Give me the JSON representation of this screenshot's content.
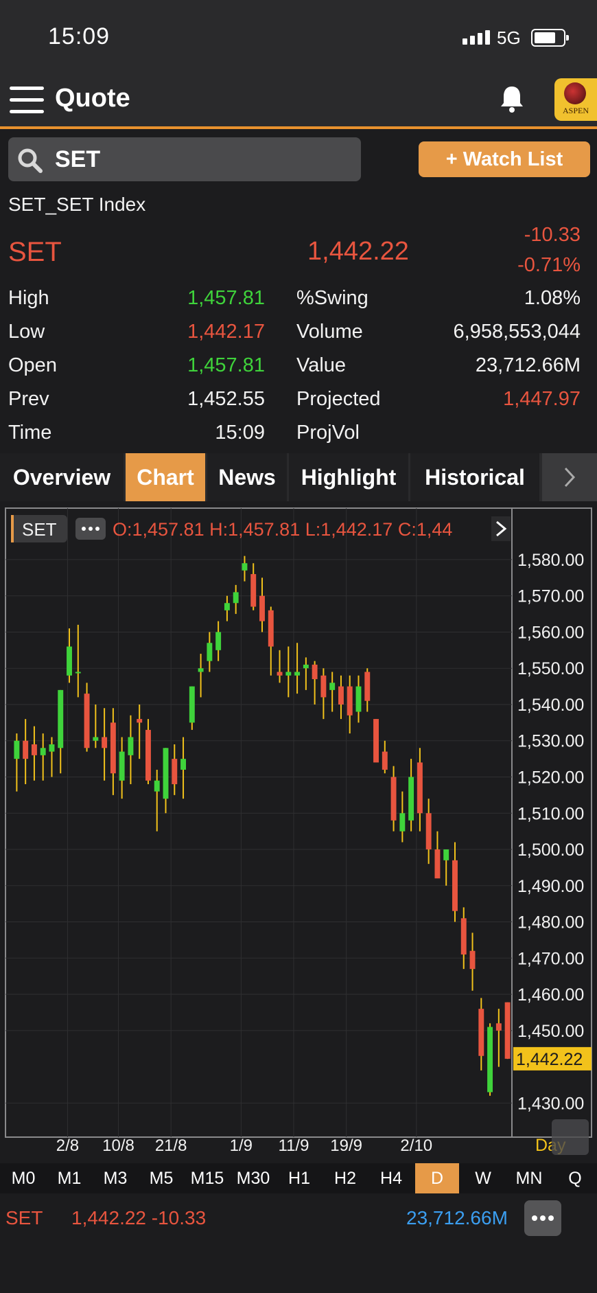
{
  "status_bar": {
    "time": "15:09",
    "network": "5G"
  },
  "header": {
    "title": "Quote",
    "logo_text": "ASPEN"
  },
  "search": {
    "value": "SET"
  },
  "watch_button": "+ Watch List",
  "security": {
    "full_name": "SET_SET Index",
    "symbol": "SET",
    "last": "1,442.22",
    "change": "-10.33",
    "change_pct": "-0.71%"
  },
  "stats_left": [
    {
      "label": "High",
      "value": "1,457.81",
      "color": "green"
    },
    {
      "label": "Low",
      "value": "1,442.17",
      "color": "red"
    },
    {
      "label": "Open",
      "value": "1,457.81",
      "color": "green"
    },
    {
      "label": "Prev",
      "value": "1,452.55",
      "color": "white"
    },
    {
      "label": "Time",
      "value": "15:09",
      "color": "white"
    }
  ],
  "stats_right": [
    {
      "label": "%Swing",
      "value": "1.08%",
      "color": "white"
    },
    {
      "label": "Volume",
      "value": "6,958,553,044",
      "color": "white"
    },
    {
      "label": "Value",
      "value": "23,712.66M",
      "color": "white"
    },
    {
      "label": "Projected",
      "value": "1,447.97",
      "color": "red"
    },
    {
      "label": "ProjVol",
      "value": "",
      "color": "white"
    }
  ],
  "tabs": [
    "Overview",
    "Chart",
    "News",
    "Highlight",
    "Historical"
  ],
  "active_tab": "Chart",
  "chart_legend": {
    "symbol": "SET",
    "ohlc": "O:1,457.81  H:1,457.81  L:1,442.17  C:1,44"
  },
  "chart_period_label": "Day",
  "timeframes": [
    "M0",
    "M1",
    "M3",
    "M5",
    "M15",
    "M30",
    "H1",
    "H2",
    "H4",
    "D",
    "W",
    "MN",
    "Q"
  ],
  "active_timeframe": "D",
  "footer": {
    "symbol": "SET",
    "price_change": "1,442.22 -10.33",
    "value": "23,712.66M"
  },
  "colors": {
    "up": "#3fd33b",
    "down": "#e8553f",
    "accent": "#e69a48",
    "wick": "#f2c21b",
    "value_blue": "#3b9ef0"
  },
  "chart_data": {
    "type": "candlestick",
    "title": "",
    "y_ticks": [
      "1,580.00",
      "1,570.00",
      "1,560.00",
      "1,550.00",
      "1,540.00",
      "1,530.00",
      "1,520.00",
      "1,510.00",
      "1,500.00",
      "1,490.00",
      "1,480.00",
      "1,470.00",
      "1,460.00",
      "1,450.00",
      "1,430.00"
    ],
    "y_tick_values": [
      1580,
      1570,
      1560,
      1550,
      1540,
      1530,
      1520,
      1510,
      1500,
      1490,
      1480,
      1470,
      1460,
      1450,
      1430
    ],
    "ylim": [
      1424,
      1587
    ],
    "x_ticks": [
      {
        "label": "2/8",
        "index": 5.8
      },
      {
        "label": "10/8",
        "index": 11.6
      },
      {
        "label": "21/8",
        "index": 17.6
      },
      {
        "label": "1/9",
        "index": 25.6
      },
      {
        "label": "11/9",
        "index": 31.6
      },
      {
        "label": "19/9",
        "index": 37.6
      },
      {
        "label": "2/10",
        "index": 45.6
      }
    ],
    "current_price_label": "1,442.22",
    "current_price": 1442.22,
    "candles": [
      {
        "o": 1525,
        "h": 1532,
        "l": 1516,
        "c": 1530
      },
      {
        "o": 1530,
        "h": 1536,
        "l": 1518,
        "c": 1525
      },
      {
        "o": 1529,
        "h": 1534,
        "l": 1519,
        "c": 1526
      },
      {
        "o": 1526,
        "h": 1532,
        "l": 1519,
        "c": 1528
      },
      {
        "o": 1527,
        "h": 1531,
        "l": 1520,
        "c": 1529
      },
      {
        "o": 1528,
        "h": 1544,
        "l": 1521,
        "c": 1544
      },
      {
        "o": 1548,
        "h": 1561,
        "l": 1546,
        "c": 1556
      },
      {
        "o": 1549,
        "h": 1562,
        "l": 1542,
        "c": 1549
      },
      {
        "o": 1543,
        "h": 1546,
        "l": 1527,
        "c": 1528
      },
      {
        "o": 1530,
        "h": 1540,
        "l": 1528,
        "c": 1531
      },
      {
        "o": 1531,
        "h": 1539,
        "l": 1519,
        "c": 1528
      },
      {
        "o": 1535,
        "h": 1539,
        "l": 1515,
        "c": 1521
      },
      {
        "o": 1519,
        "h": 1531,
        "l": 1514,
        "c": 1527
      },
      {
        "o": 1526,
        "h": 1537,
        "l": 1518,
        "c": 1531
      },
      {
        "o": 1536,
        "h": 1540,
        "l": 1525,
        "c": 1535
      },
      {
        "o": 1533,
        "h": 1536,
        "l": 1518,
        "c": 1519
      },
      {
        "o": 1516,
        "h": 1522,
        "l": 1505,
        "c": 1519
      },
      {
        "o": 1514,
        "h": 1528,
        "l": 1510,
        "c": 1528
      },
      {
        "o": 1525,
        "h": 1529,
        "l": 1515,
        "c": 1518
      },
      {
        "o": 1522,
        "h": 1531,
        "l": 1514,
        "c": 1525
      },
      {
        "o": 1535,
        "h": 1545,
        "l": 1533,
        "c": 1545
      },
      {
        "o": 1549,
        "h": 1554,
        "l": 1542,
        "c": 1550
      },
      {
        "o": 1552,
        "h": 1560,
        "l": 1549,
        "c": 1557
      },
      {
        "o": 1555,
        "h": 1563,
        "l": 1552,
        "c": 1560
      },
      {
        "o": 1566,
        "h": 1570,
        "l": 1563,
        "c": 1568
      },
      {
        "o": 1568,
        "h": 1573,
        "l": 1565,
        "c": 1571
      },
      {
        "o": 1577,
        "h": 1581,
        "l": 1574,
        "c": 1579
      },
      {
        "o": 1576,
        "h": 1579,
        "l": 1566,
        "c": 1567
      },
      {
        "o": 1570,
        "h": 1575,
        "l": 1560,
        "c": 1563
      },
      {
        "o": 1566,
        "h": 1567,
        "l": 1548,
        "c": 1556
      },
      {
        "o": 1549,
        "h": 1555,
        "l": 1546,
        "c": 1548
      },
      {
        "o": 1548,
        "h": 1556,
        "l": 1542,
        "c": 1549
      },
      {
        "o": 1548,
        "h": 1557,
        "l": 1543,
        "c": 1549
      },
      {
        "o": 1550,
        "h": 1553,
        "l": 1544,
        "c": 1551
      },
      {
        "o": 1551,
        "h": 1552,
        "l": 1540,
        "c": 1547
      },
      {
        "o": 1548,
        "h": 1550,
        "l": 1536,
        "c": 1542
      },
      {
        "o": 1544,
        "h": 1549,
        "l": 1538,
        "c": 1546
      },
      {
        "o": 1545,
        "h": 1548,
        "l": 1536,
        "c": 1540
      },
      {
        "o": 1545,
        "h": 1548,
        "l": 1532,
        "c": 1537
      },
      {
        "o": 1538,
        "h": 1548,
        "l": 1535,
        "c": 1545
      },
      {
        "o": 1549,
        "h": 1550,
        "l": 1538,
        "c": 1541
      },
      {
        "o": 1536,
        "h": 1536,
        "l": 1525,
        "c": 1524
      },
      {
        "o": 1527,
        "h": 1530,
        "l": 1521,
        "c": 1522
      },
      {
        "o": 1520,
        "h": 1523,
        "l": 1505,
        "c": 1508
      },
      {
        "o": 1505,
        "h": 1516,
        "l": 1502,
        "c": 1510
      },
      {
        "o": 1508,
        "h": 1525,
        "l": 1505,
        "c": 1520
      },
      {
        "o": 1524,
        "h": 1528,
        "l": 1505,
        "c": 1510
      },
      {
        "o": 1510,
        "h": 1514,
        "l": 1496,
        "c": 1500
      },
      {
        "o": 1500,
        "h": 1505,
        "l": 1493,
        "c": 1492
      },
      {
        "o": 1497,
        "h": 1500,
        "l": 1490,
        "c": 1500
      },
      {
        "o": 1497,
        "h": 1502,
        "l": 1480,
        "c": 1483
      },
      {
        "o": 1481,
        "h": 1484,
        "l": 1467,
        "c": 1471
      },
      {
        "o": 1472,
        "h": 1477,
        "l": 1461,
        "c": 1467
      },
      {
        "o": 1456,
        "h": 1459,
        "l": 1439,
        "c": 1443
      },
      {
        "o": 1433,
        "h": 1452,
        "l": 1432,
        "c": 1451
      },
      {
        "o": 1452,
        "h": 1456,
        "l": 1440,
        "c": 1450
      },
      {
        "o": 1457.81,
        "h": 1457.81,
        "l": 1442.17,
        "c": 1442.22
      }
    ]
  }
}
